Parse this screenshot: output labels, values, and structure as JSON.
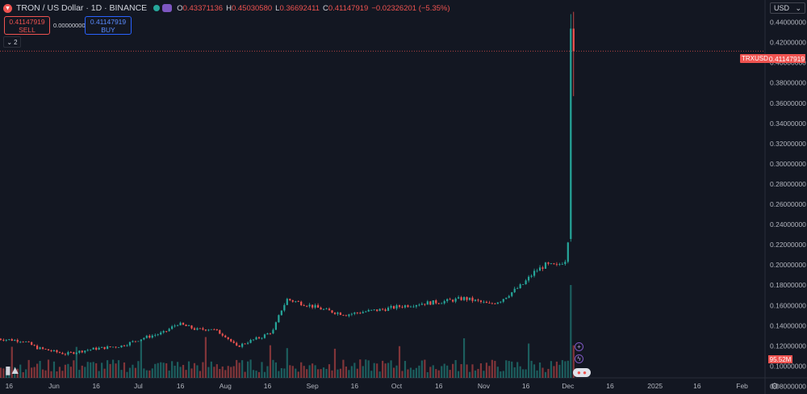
{
  "header": {
    "title": "TRON / US Dollar · 1D · BINANCE",
    "ohlc": [
      {
        "k": "O",
        "v": "0.43371136"
      },
      {
        "k": "H",
        "v": "0.45030580"
      },
      {
        "k": "L",
        "v": "0.36692411"
      },
      {
        "k": "C",
        "v": "0.41147919"
      }
    ],
    "change": "−0.02326201 (−5.35%)"
  },
  "trade": {
    "sell_price": "0.41147919",
    "sell_label": "SELL",
    "spread": "0.00000000",
    "buy_price": "0.41147919",
    "buy_label": "BUY"
  },
  "indicators_count": "2",
  "currency": "USD",
  "price_tags": {
    "symbol": "TRXUSD",
    "last": "0.41147919",
    "volume": "95.52M"
  },
  "colors": {
    "up": "#26a69a",
    "down": "#ef5350",
    "bg": "#131722",
    "grid": "#2a2e39"
  },
  "chart_data": {
    "type": "candlestick",
    "yaxis_ticks": [
      "0.08000000",
      "0.10000000",
      "0.12000000",
      "0.14000000",
      "0.16000000",
      "0.18000000",
      "0.20000000",
      "0.22000000",
      "0.24000000",
      "0.26000000",
      "0.28000000",
      "0.30000000",
      "0.32000000",
      "0.34000000",
      "0.36000000",
      "0.38000000",
      "0.40000000",
      "0.42000000",
      "0.44000000"
    ],
    "ylim": [
      0.074,
      0.462
    ],
    "xaxis_ticks": [
      {
        "label": "16",
        "day": -15
      },
      {
        "label": "Jun",
        "day": 1
      },
      {
        "label": "16",
        "day": 16
      },
      {
        "label": "Jul",
        "day": 31
      },
      {
        "label": "16",
        "day": 46
      },
      {
        "label": "Aug",
        "day": 62
      },
      {
        "label": "16",
        "day": 77
      },
      {
        "label": "Sep",
        "day": 93
      },
      {
        "label": "16",
        "day": 108
      },
      {
        "label": "Oct",
        "day": 123
      },
      {
        "label": "16",
        "day": 138
      },
      {
        "label": "Nov",
        "day": 154
      },
      {
        "label": "16",
        "day": 169
      },
      {
        "label": "Dec",
        "day": 184
      },
      {
        "label": "16",
        "day": 199
      },
      {
        "label": "2025",
        "day": 215
      },
      {
        "label": "16",
        "day": 230
      },
      {
        "label": "Feb",
        "day": 246
      },
      {
        "label": "16",
        "day": 261
      }
    ],
    "last_price": 0.41147919,
    "path": [
      [
        -19,
        0.127
      ],
      [
        -10,
        0.125
      ],
      [
        -5,
        0.118
      ],
      [
        5,
        0.112
      ],
      [
        15,
        0.117
      ],
      [
        25,
        0.12
      ],
      [
        33,
        0.128
      ],
      [
        40,
        0.133
      ],
      [
        45,
        0.142
      ],
      [
        52,
        0.136
      ],
      [
        57,
        0.137
      ],
      [
        62,
        0.13
      ],
      [
        66,
        0.119
      ],
      [
        70,
        0.124
      ],
      [
        75,
        0.129
      ],
      [
        79,
        0.135
      ],
      [
        82,
        0.156
      ],
      [
        84,
        0.166
      ],
      [
        88,
        0.163
      ],
      [
        92,
        0.16
      ],
      [
        98,
        0.155
      ],
      [
        105,
        0.151
      ],
      [
        112,
        0.154
      ],
      [
        118,
        0.156
      ],
      [
        124,
        0.159
      ],
      [
        132,
        0.162
      ],
      [
        140,
        0.164
      ],
      [
        147,
        0.167
      ],
      [
        152,
        0.164
      ],
      [
        156,
        0.161
      ],
      [
        160,
        0.165
      ],
      [
        164,
        0.173
      ],
      [
        168,
        0.181
      ],
      [
        172,
        0.193
      ],
      [
        176,
        0.2
      ],
      [
        180,
        0.199
      ],
      [
        183,
        0.205
      ],
      [
        184,
        0.225
      ],
      [
        185,
        0.434
      ],
      [
        186,
        0.411
      ]
    ],
    "volume_max": 95.52
  }
}
